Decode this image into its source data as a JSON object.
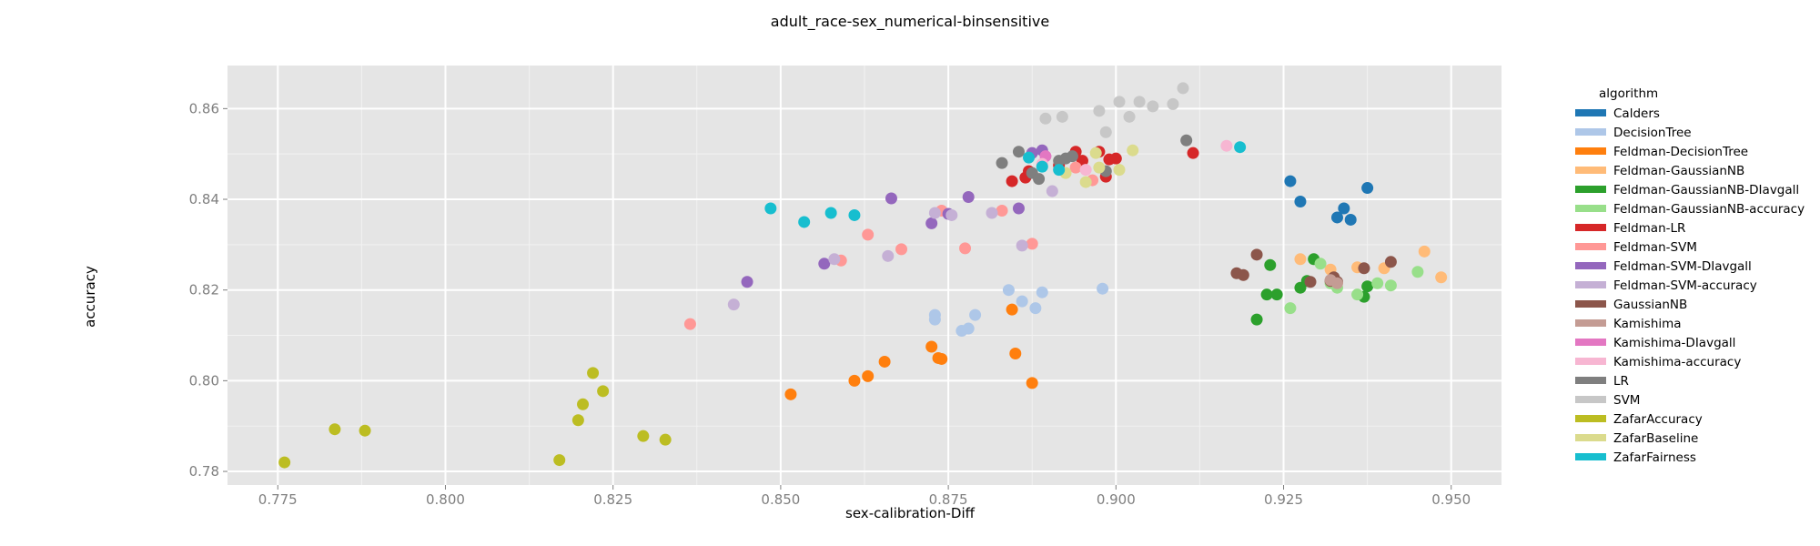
{
  "chart_data": {
    "type": "scatter",
    "title": "adult_race-sex_numerical-binsensitive",
    "xlabel": "sex-calibration-Diff",
    "ylabel": "accuracy",
    "xlim": [
      0.7675,
      0.9575
    ],
    "ylim": [
      0.777,
      0.8695
    ],
    "xticks": [
      0.775,
      0.8,
      0.825,
      0.85,
      0.875,
      0.9,
      0.925,
      0.95
    ],
    "xtick_labels": [
      "0.775",
      "0.800",
      "0.825",
      "0.850",
      "0.875",
      "0.900",
      "0.925",
      "0.950"
    ],
    "yticks": [
      0.78,
      0.8,
      0.82,
      0.84,
      0.86
    ],
    "ytick_labels": [
      "0.78",
      "0.80",
      "0.82",
      "0.84",
      "0.86"
    ],
    "grid": true,
    "background": "#e5e5e5",
    "legend_title": "algorithm",
    "legend_position": "right",
    "series": [
      {
        "name": "Calders",
        "color": "#1f77b4",
        "points": [
          [
            0.926,
            0.844
          ],
          [
            0.9275,
            0.8395
          ],
          [
            0.933,
            0.836
          ],
          [
            0.934,
            0.838
          ],
          [
            0.935,
            0.8355
          ],
          [
            0.9375,
            0.8425
          ]
        ]
      },
      {
        "name": "DecisionTree",
        "color": "#aec7e8",
        "points": [
          [
            0.873,
            0.8145
          ],
          [
            0.873,
            0.8135
          ],
          [
            0.877,
            0.811
          ],
          [
            0.878,
            0.8115
          ],
          [
            0.879,
            0.8145
          ],
          [
            0.884,
            0.82
          ],
          [
            0.886,
            0.8175
          ],
          [
            0.888,
            0.816
          ],
          [
            0.889,
            0.8195
          ],
          [
            0.898,
            0.8203
          ]
        ]
      },
      {
        "name": "Feldman-DecisionTree",
        "color": "#ff7f0e",
        "points": [
          [
            0.8515,
            0.797
          ],
          [
            0.861,
            0.8
          ],
          [
            0.863,
            0.801
          ],
          [
            0.8655,
            0.8042
          ],
          [
            0.8725,
            0.8075
          ],
          [
            0.8735,
            0.805
          ],
          [
            0.874,
            0.8048
          ],
          [
            0.8845,
            0.8157
          ],
          [
            0.885,
            0.806
          ],
          [
            0.8875,
            0.7995
          ]
        ]
      },
      {
        "name": "Feldman-GaussianNB",
        "color": "#ffbb78",
        "points": [
          [
            0.9275,
            0.8268
          ],
          [
            0.932,
            0.8245
          ],
          [
            0.936,
            0.825
          ],
          [
            0.94,
            0.8248
          ],
          [
            0.946,
            0.8285
          ],
          [
            0.9485,
            0.8228
          ]
        ]
      },
      {
        "name": "Feldman-GaussianNB-DIavgall",
        "color": "#2ca02c",
        "points": [
          [
            0.921,
            0.8135
          ],
          [
            0.9225,
            0.819
          ],
          [
            0.923,
            0.8255
          ],
          [
            0.924,
            0.819
          ],
          [
            0.9275,
            0.8205
          ],
          [
            0.9285,
            0.822
          ],
          [
            0.9295,
            0.8268
          ],
          [
            0.937,
            0.8185
          ],
          [
            0.9375,
            0.8208
          ]
        ]
      },
      {
        "name": "Feldman-GaussianNB-accuracy",
        "color": "#98df8a",
        "points": [
          [
            0.926,
            0.816
          ],
          [
            0.9305,
            0.8258
          ],
          [
            0.932,
            0.8215
          ],
          [
            0.933,
            0.8205
          ],
          [
            0.936,
            0.819
          ],
          [
            0.939,
            0.8215
          ],
          [
            0.941,
            0.821
          ],
          [
            0.945,
            0.824
          ]
        ]
      },
      {
        "name": "Feldman-LR",
        "color": "#d62728",
        "points": [
          [
            0.8845,
            0.844
          ],
          [
            0.8865,
            0.8448
          ],
          [
            0.887,
            0.8462
          ],
          [
            0.8915,
            0.8475
          ],
          [
            0.894,
            0.8505
          ],
          [
            0.895,
            0.8485
          ],
          [
            0.8975,
            0.8505
          ],
          [
            0.8985,
            0.845
          ],
          [
            0.899,
            0.8488
          ],
          [
            0.9,
            0.849
          ],
          [
            0.9115,
            0.8502
          ]
        ]
      },
      {
        "name": "Feldman-SVM",
        "color": "#ff9896",
        "points": [
          [
            0.8365,
            0.8125
          ],
          [
            0.859,
            0.8265
          ],
          [
            0.863,
            0.8322
          ],
          [
            0.868,
            0.829
          ],
          [
            0.874,
            0.8375
          ],
          [
            0.8775,
            0.8292
          ],
          [
            0.883,
            0.8375
          ],
          [
            0.8875,
            0.8302
          ],
          [
            0.894,
            0.847
          ],
          [
            0.8965,
            0.8442
          ]
        ]
      },
      {
        "name": "Feldman-SVM-DIavgall",
        "color": "#9467bd",
        "points": [
          [
            0.845,
            0.8218
          ],
          [
            0.8565,
            0.8258
          ],
          [
            0.8665,
            0.8402
          ],
          [
            0.8725,
            0.8347
          ],
          [
            0.875,
            0.8368
          ],
          [
            0.878,
            0.8405
          ],
          [
            0.8855,
            0.838
          ],
          [
            0.8875,
            0.8502
          ],
          [
            0.889,
            0.8508
          ]
        ]
      },
      {
        "name": "Feldman-SVM-accuracy",
        "color": "#c5b0d5",
        "points": [
          [
            0.843,
            0.8168
          ],
          [
            0.858,
            0.8268
          ],
          [
            0.866,
            0.8275
          ],
          [
            0.873,
            0.837
          ],
          [
            0.8755,
            0.8365
          ],
          [
            0.8815,
            0.837
          ],
          [
            0.886,
            0.8298
          ],
          [
            0.8905,
            0.8418
          ]
        ]
      },
      {
        "name": "GaussianNB",
        "color": "#8c564b",
        "points": [
          [
            0.918,
            0.8237
          ],
          [
            0.919,
            0.8233
          ],
          [
            0.921,
            0.8278
          ],
          [
            0.929,
            0.8218
          ],
          [
            0.932,
            0.822
          ],
          [
            0.9325,
            0.8228
          ],
          [
            0.933,
            0.8218
          ],
          [
            0.937,
            0.8248
          ],
          [
            0.941,
            0.8262
          ]
        ]
      },
      {
        "name": "Kamishima",
        "color": "#c49c94",
        "points": [
          [
            0.932,
            0.8222
          ],
          [
            0.933,
            0.8215
          ]
        ]
      },
      {
        "name": "Kamishima-DIavgall",
        "color": "#e377c2",
        "points": [
          [
            0.8895,
            0.8495
          ]
        ]
      },
      {
        "name": "Kamishima-accuracy",
        "color": "#f7b6d2",
        "points": [
          [
            0.889,
            0.8478
          ],
          [
            0.8955,
            0.8465
          ],
          [
            0.9165,
            0.8518
          ]
        ]
      },
      {
        "name": "LR",
        "color": "#7f7f7f",
        "points": [
          [
            0.883,
            0.848
          ],
          [
            0.8855,
            0.8505
          ],
          [
            0.8875,
            0.8458
          ],
          [
            0.8885,
            0.8445
          ],
          [
            0.8915,
            0.8485
          ],
          [
            0.8925,
            0.849
          ],
          [
            0.8935,
            0.8495
          ],
          [
            0.8985,
            0.8462
          ],
          [
            0.9105,
            0.853
          ]
        ]
      },
      {
        "name": "SVM",
        "color": "#c7c7c7",
        "points": [
          [
            0.8895,
            0.8578
          ],
          [
            0.892,
            0.8582
          ],
          [
            0.8975,
            0.8595
          ],
          [
            0.8985,
            0.8548
          ],
          [
            0.9005,
            0.8615
          ],
          [
            0.902,
            0.8582
          ],
          [
            0.9035,
            0.8615
          ],
          [
            0.9055,
            0.8605
          ],
          [
            0.9085,
            0.861
          ],
          [
            0.91,
            0.8645
          ]
        ]
      },
      {
        "name": "ZafarAccuracy",
        "color": "#bcbd22",
        "points": [
          [
            0.776,
            0.782
          ],
          [
            0.7835,
            0.7893
          ],
          [
            0.788,
            0.789
          ],
          [
            0.817,
            0.7825
          ],
          [
            0.8198,
            0.7913
          ],
          [
            0.8205,
            0.7948
          ],
          [
            0.822,
            0.8017
          ],
          [
            0.8235,
            0.7977
          ],
          [
            0.8295,
            0.7878
          ],
          [
            0.8328,
            0.787
          ]
        ]
      },
      {
        "name": "ZafarBaseline",
        "color": "#dbdb8d",
        "points": [
          [
            0.8925,
            0.8458
          ],
          [
            0.8955,
            0.8438
          ],
          [
            0.897,
            0.8502
          ],
          [
            0.8975,
            0.847
          ],
          [
            0.9005,
            0.8465
          ],
          [
            0.9025,
            0.8508
          ]
        ]
      },
      {
        "name": "ZafarFairness",
        "color": "#17becf",
        "points": [
          [
            0.8485,
            0.838
          ],
          [
            0.8535,
            0.835
          ],
          [
            0.8575,
            0.837
          ],
          [
            0.861,
            0.8365
          ],
          [
            0.887,
            0.8492
          ],
          [
            0.889,
            0.8472
          ],
          [
            0.8915,
            0.8465
          ],
          [
            0.9185,
            0.8515
          ]
        ]
      }
    ]
  }
}
